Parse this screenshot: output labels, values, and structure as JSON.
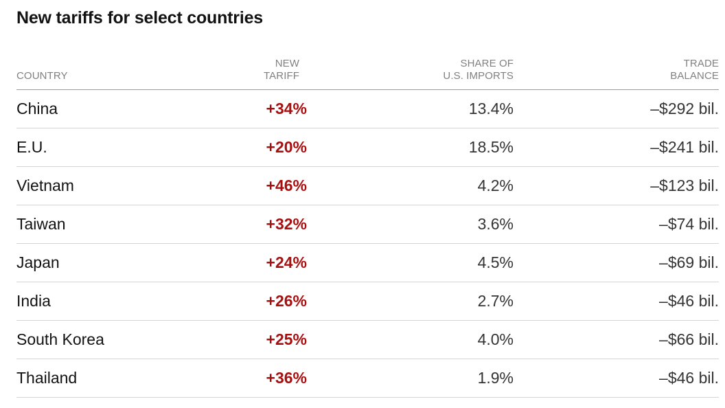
{
  "title": "New tariffs for select countries",
  "headers": {
    "country": "COUNTRY",
    "tariff_line1": "NEW",
    "tariff_line2": "TARIFF",
    "share_line1": "SHARE OF",
    "share_line2": "U.S. IMPORTS",
    "balance_line1": "TRADE",
    "balance_line2": "BALANCE"
  },
  "colors": {
    "tariff": "#a81010",
    "header": "#808080",
    "divider": "#d4d4d4"
  },
  "chart_data": {
    "type": "table",
    "title": "New tariffs for select countries",
    "columns": [
      "COUNTRY",
      "NEW TARIFF",
      "SHARE OF U.S. IMPORTS",
      "TRADE BALANCE"
    ],
    "rows": [
      {
        "country": "China",
        "tariff": "+34%",
        "share": "13.4%",
        "balance": "–$292 bil."
      },
      {
        "country": "E.U.",
        "tariff": "+20%",
        "share": "18.5%",
        "balance": "–$241 bil."
      },
      {
        "country": "Vietnam",
        "tariff": "+46%",
        "share": "4.2%",
        "balance": "–$123 bil."
      },
      {
        "country": "Taiwan",
        "tariff": "+32%",
        "share": "3.6%",
        "balance": "–$74 bil."
      },
      {
        "country": "Japan",
        "tariff": "+24%",
        "share": "4.5%",
        "balance": "–$69 bil."
      },
      {
        "country": "India",
        "tariff": "+26%",
        "share": "2.7%",
        "balance": "–$46 bil."
      },
      {
        "country": "South Korea",
        "tariff": "+25%",
        "share": "4.0%",
        "balance": "–$66 bil."
      },
      {
        "country": "Thailand",
        "tariff": "+36%",
        "share": "1.9%",
        "balance": "–$46 bil."
      }
    ]
  }
}
